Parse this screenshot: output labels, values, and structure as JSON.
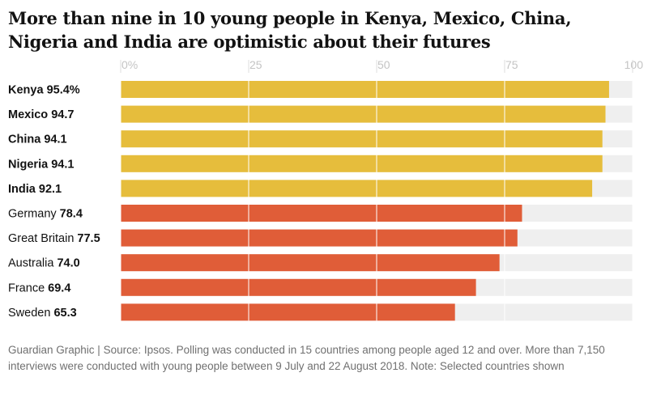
{
  "title": "More than nine in 10 young people in Kenya, Mexico, China, Nigeria and India are optimistic about their futures",
  "footer": "Guardian Graphic | Source: Ipsos. Polling was conducted in 15 countries among people aged 12 and over. More than 7,150 interviews were conducted with young people between 9 July and 22 August 2018. Note: Selected countries shown",
  "colors": {
    "highlight": "#e6bd3c",
    "other": "#e05d38",
    "track": "#efefef",
    "tick_text": "#c4c4c4",
    "label_text": "#121212"
  },
  "chart_data": {
    "type": "bar",
    "orientation": "horizontal",
    "title": "More than nine in 10 young people in Kenya, Mexico, China, Nigeria and India are optimistic about their futures",
    "xlim": [
      0,
      100
    ],
    "x_ticks": [
      "0%",
      "25",
      "50",
      "75",
      "100"
    ],
    "x_tick_values": [
      0,
      25,
      50,
      75,
      100
    ],
    "grid": true,
    "categories": [
      "Kenya",
      "Mexico",
      "China",
      "Nigeria",
      "India",
      "Germany",
      "Great Britain",
      "Australia",
      "France",
      "Sweden"
    ],
    "values": [
      95.4,
      94.7,
      94.1,
      94.1,
      92.1,
      78.4,
      77.5,
      74.0,
      69.4,
      65.3
    ],
    "value_labels": [
      "95.4%",
      "94.7",
      "94.1",
      "94.1",
      "92.1",
      "78.4",
      "77.5",
      "74.0",
      "69.4",
      "65.3"
    ],
    "groups": [
      "highlight",
      "highlight",
      "highlight",
      "highlight",
      "highlight",
      "other",
      "other",
      "other",
      "other",
      "other"
    ]
  }
}
